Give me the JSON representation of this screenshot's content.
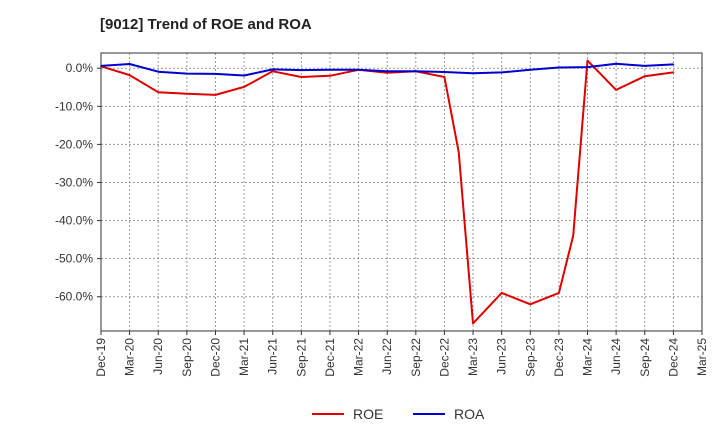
{
  "chart_data": {
    "type": "line",
    "title": "[9012]  Trend of ROE and ROA",
    "xlabel": "",
    "ylabel": "",
    "x": [
      "Dec-19",
      "Mar-20",
      "Jun-20",
      "Sep-20",
      "Dec-20",
      "Mar-21",
      "Jun-21",
      "Sep-21",
      "Dec-21",
      "Mar-22",
      "Jun-22",
      "Sep-22",
      "Dec-22",
      "Mar-23",
      "Jun-23",
      "Sep-23",
      "Dec-23",
      "Mar-24",
      "Jun-24",
      "Sep-24",
      "Dec-24",
      "Mar-25"
    ],
    "ylim": [
      -69,
      4
    ],
    "yticks": [
      0,
      -10,
      -20,
      -30,
      -40,
      -50,
      -60
    ],
    "ytick_labels": [
      "0.0%",
      "-10.0%",
      "-20.0%",
      "-30.0%",
      "-40.0%",
      "-50.0%",
      "-60.0%"
    ],
    "grid": true,
    "legend_position": "bottom-center",
    "series": [
      {
        "name": "ROE",
        "color": "#dd0000",
        "points": [
          [
            0,
            0.5
          ],
          [
            1,
            -1.8
          ],
          [
            2,
            -6.3
          ],
          [
            3,
            -6.7
          ],
          [
            4,
            -7
          ],
          [
            5,
            -4.9
          ],
          [
            6,
            -0.8
          ],
          [
            7,
            -2.3
          ],
          [
            8,
            -2
          ],
          [
            9,
            -0.4
          ],
          [
            10,
            -1.2
          ],
          [
            11,
            -0.8
          ],
          [
            12,
            -2.3
          ],
          [
            12.5,
            -22
          ],
          [
            13,
            -67
          ],
          [
            14,
            -59
          ],
          [
            15,
            -62
          ],
          [
            16,
            -59
          ],
          [
            16.5,
            -44
          ],
          [
            17,
            2
          ],
          [
            18,
            -5.7
          ],
          [
            19,
            -2.1
          ],
          [
            20,
            -1.1
          ]
        ]
      },
      {
        "name": "ROA",
        "color": "#0000cc",
        "points": [
          [
            0,
            0.6
          ],
          [
            1,
            1.1
          ],
          [
            2,
            -0.9
          ],
          [
            3,
            -1.4
          ],
          [
            4,
            -1.5
          ],
          [
            5,
            -1.9
          ],
          [
            6,
            -0.3
          ],
          [
            7,
            -0.5
          ],
          [
            8,
            -0.4
          ],
          [
            9,
            -0.4
          ],
          [
            10,
            -0.8
          ],
          [
            11,
            -0.8
          ],
          [
            12,
            -1
          ],
          [
            13,
            -1.3
          ],
          [
            14,
            -1.1
          ],
          [
            15,
            -0.4
          ],
          [
            16,
            0.2
          ],
          [
            17,
            0.3
          ],
          [
            18,
            1.2
          ],
          [
            19,
            0.6
          ],
          [
            20,
            1
          ]
        ]
      }
    ]
  }
}
